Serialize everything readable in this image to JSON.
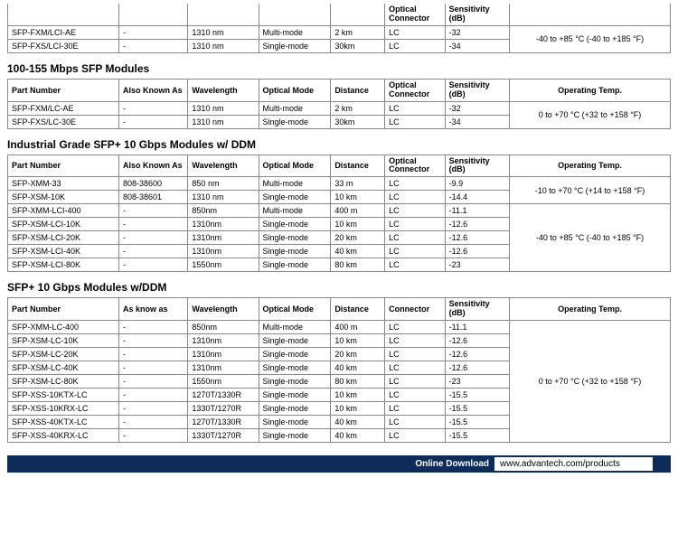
{
  "headers_common": {
    "part": "Part Number",
    "aka": "Also Known As",
    "aka2": "As know as",
    "wave": "Wavelength",
    "mode": "Optical Mode",
    "dist": "Distance",
    "conn_opt": "Optical Connector",
    "conn": "Connector",
    "sens": "Sensitivity (dB)",
    "temp": "Operating Temp."
  },
  "table0": {
    "rows": [
      {
        "part": "SFP-FXM/LCI-AE",
        "aka": "-",
        "wave": "1310 nm",
        "mode": "Multi-mode",
        "dist": "2 km",
        "conn": "LC",
        "sens": "-32"
      },
      {
        "part": "SFP-FXS/LCI-30E",
        "aka": "-",
        "wave": "1310 nm",
        "mode": "Single-mode",
        "dist": "30km",
        "conn": "LC",
        "sens": "-34"
      }
    ],
    "temp": "-40 to +85 °C (-40 to +185 °F)"
  },
  "table1": {
    "title": "100-155 Mbps SFP Modules",
    "rows": [
      {
        "part": "SFP-FXM/LC-AE",
        "aka": "-",
        "wave": "1310 nm",
        "mode": "Multi-mode",
        "dist": "2 km",
        "conn": "LC",
        "sens": "-32"
      },
      {
        "part": "SFP-FXS/LC-30E",
        "aka": "-",
        "wave": "1310 nm",
        "mode": "Single-mode",
        "dist": "30km",
        "conn": "LC",
        "sens": "-34"
      }
    ],
    "temp": "0 to +70 °C (+32 to +158 °F)"
  },
  "table2": {
    "title": "Industrial Grade SFP+ 10 Gbps Modules w/ DDM",
    "groups": [
      {
        "rows": [
          {
            "part": "SFP-XMM-33",
            "aka": "808-38600",
            "wave": "850 nm",
            "mode": "Multi-mode",
            "dist": "33 m",
            "conn": "LC",
            "sens": "-9.9"
          },
          {
            "part": "SFP-XSM-10K",
            "aka": "808-38601",
            "wave": "1310 nm",
            "mode": "Single-mode",
            "dist": "10 km",
            "conn": "LC",
            "sens": "-14.4"
          }
        ],
        "temp": "-10 to +70 °C (+14 to +158 °F)"
      },
      {
        "rows": [
          {
            "part": "SFP-XMM-LCI-400",
            "aka": "-",
            "wave": "850nm",
            "mode": "Multi-mode",
            "dist": "400 m",
            "conn": "LC",
            "sens": "-11.1"
          },
          {
            "part": "SFP-XSM-LCI-10K",
            "aka": "-",
            "wave": "1310nm",
            "mode": "Single-mode",
            "dist": "10 km",
            "conn": "LC",
            "sens": "-12.6"
          },
          {
            "part": "SFP-XSM-LCI-20K",
            "aka": "-",
            "wave": "1310nm",
            "mode": "Single-mode",
            "dist": "20 km",
            "conn": "LC",
            "sens": "-12.6"
          },
          {
            "part": "SFP-XSM-LCI-40K",
            "aka": "-",
            "wave": "1310nm",
            "mode": "Single-mode",
            "dist": "40 km",
            "conn": "LC",
            "sens": "-12.6"
          },
          {
            "part": "SFP-XSM-LCI-80K",
            "aka": "-",
            "wave": "1550nm",
            "mode": "Single-mode",
            "dist": "80 km",
            "conn": "LC",
            "sens": "-23"
          }
        ],
        "temp": "-40 to +85 °C (-40 to +185 °F)"
      }
    ]
  },
  "table3": {
    "title": "SFP+ 10 Gbps Modules w/DDM",
    "rows": [
      {
        "part": "SFP-XMM-LC-400",
        "aka": "-",
        "wave": "850nm",
        "mode": "Multi-mode",
        "dist": "400 m",
        "conn": "LC",
        "sens": "-11.1"
      },
      {
        "part": "SFP-XSM-LC-10K",
        "aka": "-",
        "wave": "1310nm",
        "mode": "Single-mode",
        "dist": "10 km",
        "conn": "LC",
        "sens": "-12.6"
      },
      {
        "part": "SFP-XSM-LC-20K",
        "aka": "-",
        "wave": "1310nm",
        "mode": "Single-mode",
        "dist": "20 km",
        "conn": "LC",
        "sens": "-12.6"
      },
      {
        "part": "SFP-XSM-LC-40K",
        "aka": "-",
        "wave": "1310nm",
        "mode": "Single-mode",
        "dist": "40 km",
        "conn": "LC",
        "sens": "-12.6"
      },
      {
        "part": "SFP-XSM-LC-80K",
        "aka": "-",
        "wave": "1550nm",
        "mode": "Single-mode",
        "dist": "80 km",
        "conn": "LC",
        "sens": "-23"
      },
      {
        "part": "SFP-XSS-10KTX-LC",
        "aka": "-",
        "wave": "1270T/1330R",
        "mode": "Single-mode",
        "dist": "10 km",
        "conn": "LC",
        "sens": "-15.5"
      },
      {
        "part": "SFP-XSS-10KRX-LC",
        "aka": "-",
        "wave": "1330T/1270R",
        "mode": "Single-mode",
        "dist": "10 km",
        "conn": "LC",
        "sens": "-15.5"
      },
      {
        "part": "SFP-XSS-40KTX-LC",
        "aka": "-",
        "wave": "1270T/1330R",
        "mode": "Single-mode",
        "dist": "40 km",
        "conn": "LC",
        "sens": "-15.5"
      },
      {
        "part": "SFP-XSS-40KRX-LC",
        "aka": "-",
        "wave": "1330T/1270R",
        "mode": "Single-mode",
        "dist": "40 km",
        "conn": "LC",
        "sens": "-15.5"
      }
    ],
    "temp": "0 to +70 °C (+32 to +158 °F)"
  },
  "footer": {
    "label": "Online Download",
    "url": "www.advantech.com/products"
  }
}
